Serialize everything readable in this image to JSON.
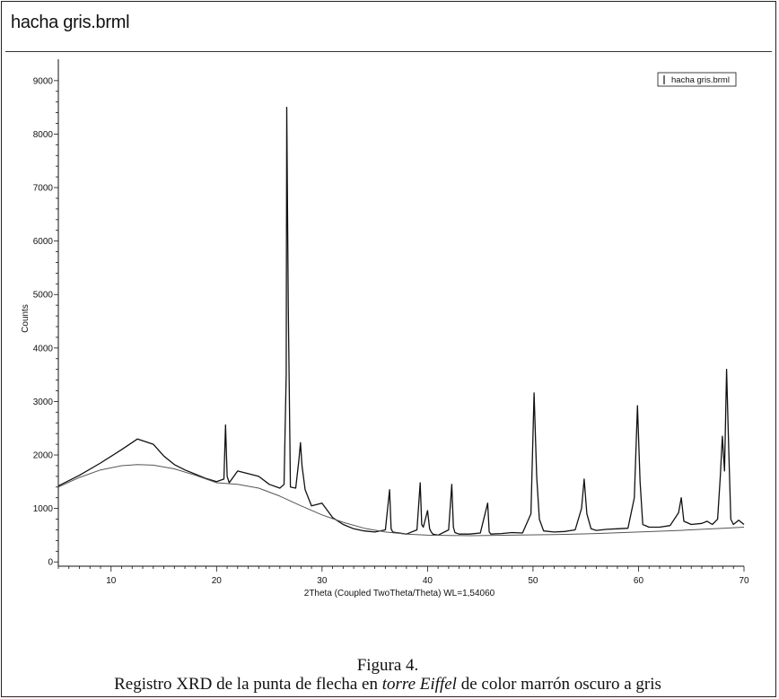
{
  "panel_title": "hacha gris.brml",
  "caption": {
    "figure_label": "Figura 4.",
    "text_before": "Registro XRD de la punta de flecha en ",
    "text_italic": "torre Eiffel",
    "text_after": " de color marrón oscuro a gris"
  },
  "chart_data": {
    "type": "line",
    "title": "",
    "xlabel": "2Theta (Coupled TwoTheta/Theta) WL=1,54060",
    "ylabel": "Counts",
    "xlim": [
      5,
      70
    ],
    "ylim": [
      -80,
      9400
    ],
    "x_ticks": [
      10,
      20,
      30,
      40,
      50,
      60,
      70
    ],
    "y_ticks": [
      0,
      1000,
      2000,
      3000,
      4000,
      5000,
      6000,
      7000,
      8000,
      9000
    ],
    "legend": {
      "entries": [
        "hacha gris.brml"
      ],
      "placement": "top-right"
    },
    "grid": false,
    "series": [
      {
        "name": "hacha gris.brml",
        "color": "#111111",
        "x": [
          5,
          7,
          9,
          11,
          12.5,
          14,
          15,
          16,
          17,
          18,
          19,
          20,
          20.7,
          20.85,
          21.0,
          21.2,
          22,
          23,
          24,
          25,
          26,
          26.4,
          26.6,
          26.65,
          26.8,
          27.0,
          27.5,
          27.8,
          27.95,
          28.1,
          28.4,
          29,
          30,
          31,
          32,
          33,
          34,
          35,
          36,
          36.4,
          36.55,
          36.7,
          37,
          38,
          39,
          39.3,
          39.45,
          39.6,
          40,
          40.2,
          40.35,
          40.5,
          41,
          42,
          42.3,
          42.45,
          42.6,
          43,
          44,
          45,
          45.7,
          45.85,
          46.0,
          47,
          48,
          49,
          49.8,
          50.1,
          50.35,
          50.6,
          51,
          52,
          53,
          54,
          54.6,
          54.85,
          55.1,
          55.5,
          56,
          57,
          58,
          59,
          59.6,
          59.9,
          60.15,
          60.4,
          61,
          62,
          63,
          63.8,
          64.05,
          64.3,
          65,
          66,
          66.5,
          67,
          67.5,
          67.75,
          67.95,
          68.15,
          68.35,
          68.55,
          68.75,
          69.0,
          69.5,
          70
        ],
        "y": [
          1420,
          1620,
          1850,
          2100,
          2300,
          2200,
          1980,
          1820,
          1720,
          1640,
          1560,
          1500,
          1550,
          2560,
          1600,
          1480,
          1700,
          1650,
          1600,
          1450,
          1380,
          1450,
          3500,
          8500,
          4800,
          1400,
          1380,
          1900,
          2230,
          1800,
          1350,
          1050,
          1100,
          830,
          700,
          620,
          580,
          560,
          600,
          1350,
          620,
          560,
          550,
          520,
          600,
          1480,
          700,
          650,
          960,
          620,
          560,
          520,
          500,
          600,
          1450,
          650,
          550,
          520,
          520,
          540,
          1100,
          560,
          520,
          530,
          550,
          540,
          900,
          3160,
          1600,
          800,
          580,
          560,
          570,
          600,
          1000,
          1550,
          900,
          620,
          590,
          610,
          620,
          630,
          1200,
          2920,
          1500,
          700,
          650,
          650,
          680,
          920,
          1200,
          760,
          700,
          720,
          760,
          700,
          800,
          1600,
          2350,
          1700,
          3600,
          2100,
          800,
          700,
          780,
          700
        ]
      },
      {
        "name": "",
        "color": "#555555",
        "x": [
          5,
          7,
          9,
          11,
          12.5,
          14,
          16,
          18,
          20,
          22,
          24,
          26,
          28,
          30,
          32,
          34,
          36,
          38,
          40,
          44,
          48,
          52,
          56,
          60,
          64,
          66,
          68,
          70
        ],
        "y": [
          1400,
          1580,
          1720,
          1800,
          1820,
          1810,
          1740,
          1620,
          1480,
          1450,
          1380,
          1230,
          1050,
          880,
          740,
          630,
          560,
          520,
          500,
          490,
          500,
          510,
          530,
          560,
          590,
          610,
          630,
          650
        ]
      }
    ]
  }
}
